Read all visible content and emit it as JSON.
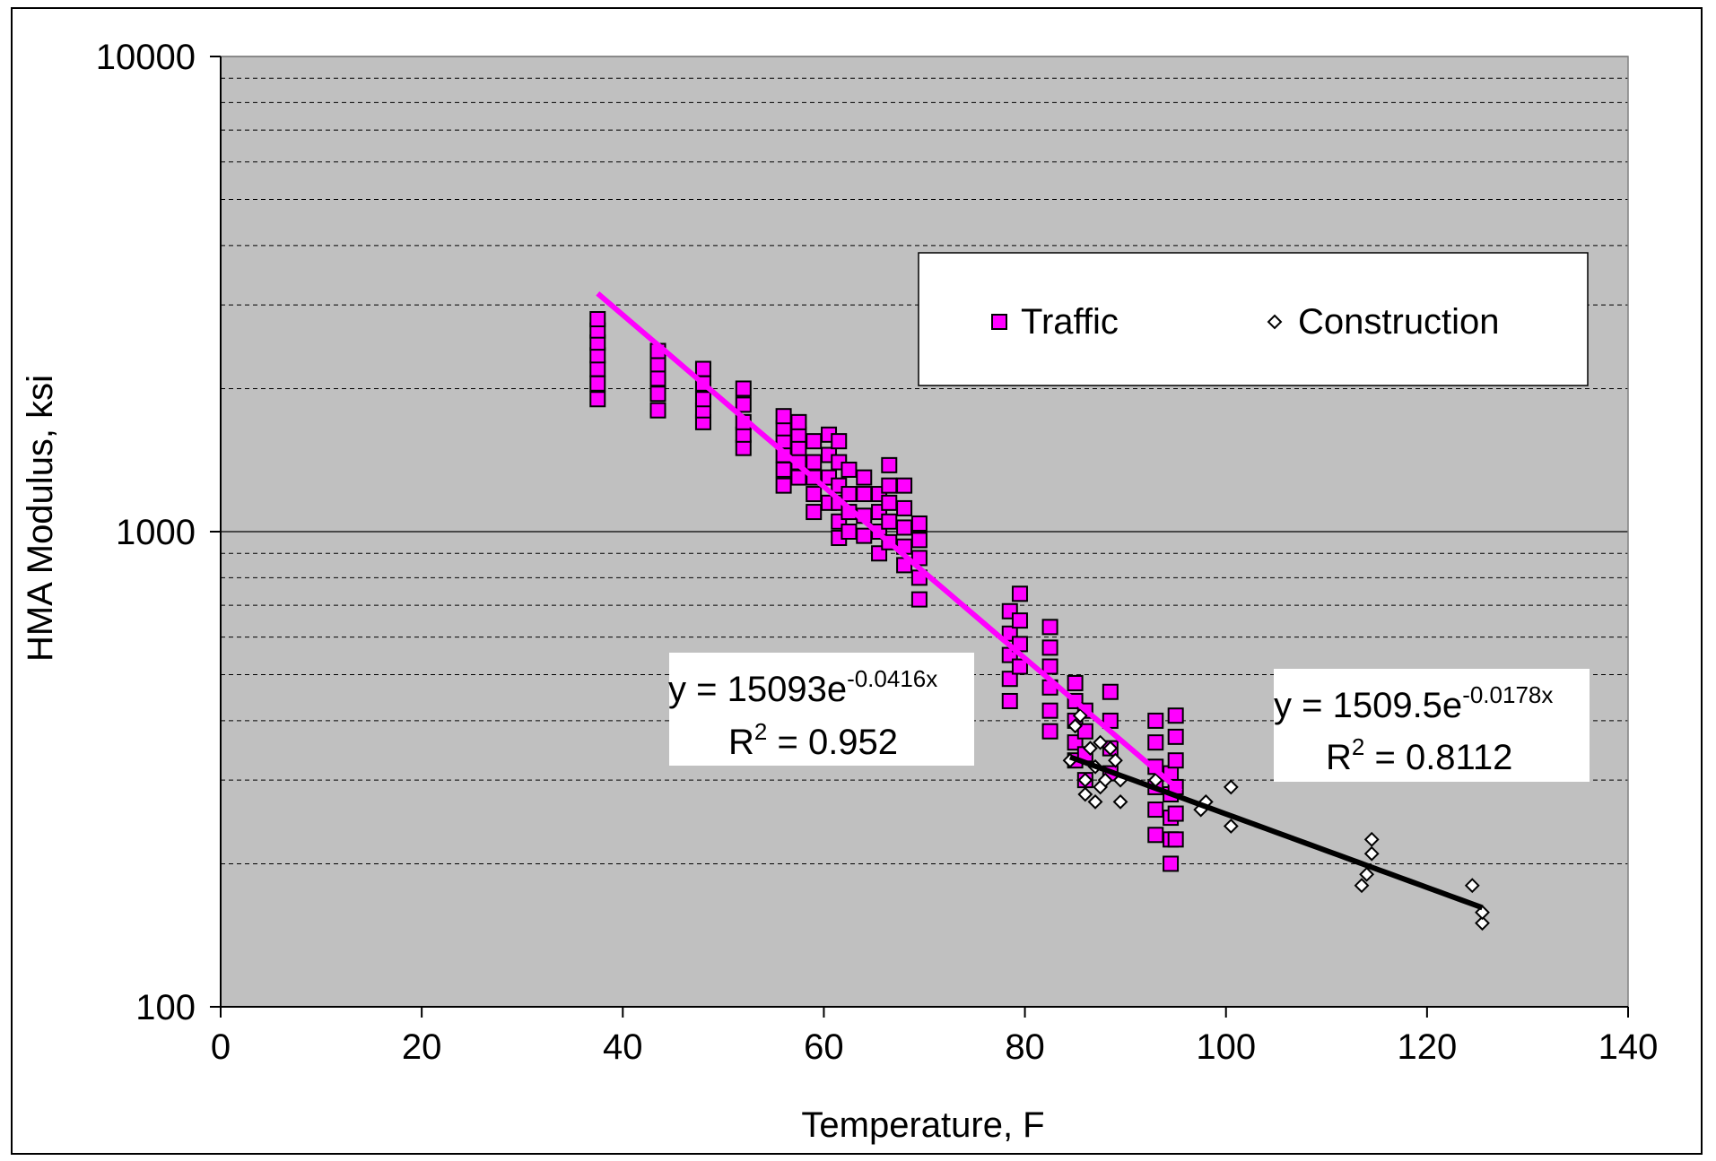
{
  "chart_data": {
    "type": "scatter",
    "xlabel": "Temperature, F",
    "ylabel": "HMA Modulus, ksi",
    "xlim": [
      0,
      140
    ],
    "ylim": [
      100,
      10000
    ],
    "y_scale": "log",
    "x_ticks": [
      "0",
      "20",
      "40",
      "60",
      "80",
      "100",
      "120",
      "140"
    ],
    "y_ticks": [
      "100",
      "1000",
      "10000"
    ],
    "grid": "horizontal dashed minor, solid major",
    "plot_background": "#c0c0c0",
    "legend_position": "top-right",
    "series": [
      {
        "name": "Traffic",
        "marker": "square",
        "color": "#ff00ff",
        "points": [
          [
            37.5,
            1900
          ],
          [
            37.5,
            2050
          ],
          [
            37.5,
            2200
          ],
          [
            37.5,
            2350
          ],
          [
            37.5,
            2500
          ],
          [
            37.5,
            2650
          ],
          [
            37.5,
            2800
          ],
          [
            43.5,
            1800
          ],
          [
            43.5,
            1950
          ],
          [
            43.5,
            2100
          ],
          [
            43.5,
            2250
          ],
          [
            43.5,
            2400
          ],
          [
            48,
            1700
          ],
          [
            48,
            1800
          ],
          [
            48,
            1900
          ],
          [
            48,
            2050
          ],
          [
            48,
            2200
          ],
          [
            52,
            1500
          ],
          [
            52,
            1600
          ],
          [
            52,
            1700
          ],
          [
            52,
            1850
          ],
          [
            52,
            2000
          ],
          [
            56,
            1250
          ],
          [
            56,
            1350
          ],
          [
            56,
            1450
          ],
          [
            56,
            1550
          ],
          [
            56,
            1650
          ],
          [
            56,
            1750
          ],
          [
            57.5,
            1300
          ],
          [
            57.5,
            1400
          ],
          [
            57.5,
            1500
          ],
          [
            57.5,
            1600
          ],
          [
            57.5,
            1700
          ],
          [
            59,
            1100
          ],
          [
            59,
            1200
          ],
          [
            59,
            1300
          ],
          [
            59,
            1400
          ],
          [
            59,
            1550
          ],
          [
            60.5,
            1150
          ],
          [
            60.5,
            1300
          ],
          [
            60.5,
            1450
          ],
          [
            60.5,
            1600
          ],
          [
            61.5,
            970
          ],
          [
            61.5,
            1050
          ],
          [
            61.5,
            1150
          ],
          [
            61.5,
            1250
          ],
          [
            61.5,
            1400
          ],
          [
            61.5,
            1550
          ],
          [
            62.5,
            1000
          ],
          [
            62.5,
            1100
          ],
          [
            62.5,
            1200
          ],
          [
            62.5,
            1350
          ],
          [
            64,
            980
          ],
          [
            64,
            1080
          ],
          [
            64,
            1200
          ],
          [
            64,
            1300
          ],
          [
            65.5,
            900
          ],
          [
            65.5,
            1000
          ],
          [
            65.5,
            1100
          ],
          [
            65.5,
            1200
          ],
          [
            66.5,
            950
          ],
          [
            66.5,
            1050
          ],
          [
            66.5,
            1150
          ],
          [
            66.5,
            1250
          ],
          [
            66.5,
            1380
          ],
          [
            68,
            850
          ],
          [
            68,
            930
          ],
          [
            68,
            1020
          ],
          [
            68,
            1120
          ],
          [
            68,
            1250
          ],
          [
            69.5,
            720
          ],
          [
            69.5,
            800
          ],
          [
            69.5,
            880
          ],
          [
            69.5,
            960
          ],
          [
            69.5,
            1040
          ],
          [
            78.5,
            440
          ],
          [
            78.5,
            490
          ],
          [
            78.5,
            550
          ],
          [
            78.5,
            610
          ],
          [
            78.5,
            680
          ],
          [
            79.5,
            520
          ],
          [
            79.5,
            580
          ],
          [
            79.5,
            650
          ],
          [
            79.5,
            740
          ],
          [
            82.5,
            380
          ],
          [
            82.5,
            420
          ],
          [
            82.5,
            470
          ],
          [
            82.5,
            520
          ],
          [
            82.5,
            570
          ],
          [
            82.5,
            630
          ],
          [
            85,
            330
          ],
          [
            85,
            360
          ],
          [
            85,
            400
          ],
          [
            85,
            440
          ],
          [
            85,
            480
          ],
          [
            86,
            300
          ],
          [
            86,
            340
          ],
          [
            86,
            380
          ],
          [
            86,
            420
          ],
          [
            88.5,
            310
          ],
          [
            88.5,
            350
          ],
          [
            88.5,
            400
          ],
          [
            88.5,
            460
          ],
          [
            93,
            230
          ],
          [
            93,
            260
          ],
          [
            93,
            290
          ],
          [
            93,
            320
          ],
          [
            93,
            360
          ],
          [
            93,
            400
          ],
          [
            94.5,
            200
          ],
          [
            94.5,
            225
          ],
          [
            94.5,
            250
          ],
          [
            94.5,
            280
          ],
          [
            94.5,
            310
          ],
          [
            95,
            225
          ],
          [
            95,
            255
          ],
          [
            95,
            290
          ],
          [
            95,
            330
          ],
          [
            95,
            370
          ],
          [
            95,
            410
          ]
        ],
        "trendline": {
          "a": 15093,
          "b": -0.0416,
          "x_range": [
            37.5,
            95.5
          ],
          "color": "#ff00ff"
        }
      },
      {
        "name": "Construction",
        "marker": "diamond",
        "color": "#ffffff",
        "points": [
          [
            84.5,
            330
          ],
          [
            85,
            390
          ],
          [
            85.5,
            410
          ],
          [
            86,
            280
          ],
          [
            86,
            300
          ],
          [
            86.5,
            350
          ],
          [
            87,
            270
          ],
          [
            87,
            320
          ],
          [
            87.5,
            360
          ],
          [
            87.5,
            290
          ],
          [
            88,
            300
          ],
          [
            88.5,
            350
          ],
          [
            89,
            330
          ],
          [
            89.5,
            270
          ],
          [
            89.5,
            300
          ],
          [
            93,
            300
          ],
          [
            97.5,
            260
          ],
          [
            98,
            270
          ],
          [
            100.5,
            240
          ],
          [
            100.5,
            290
          ],
          [
            113.5,
            180
          ],
          [
            114,
            190
          ],
          [
            114.5,
            210
          ],
          [
            114.5,
            225
          ],
          [
            124.5,
            180
          ],
          [
            125.5,
            150
          ],
          [
            125.5,
            158
          ]
        ],
        "trendline": {
          "a": 1509.5,
          "b": -0.0178,
          "x_range": [
            84.5,
            125.5
          ],
          "color": "#000000"
        }
      }
    ],
    "annotations": [
      {
        "eq_base": "y = 15093e",
        "eq_exp": "-0.0416x",
        "r2_label": "R",
        "r2_sup": "2",
        "r2_value": " = 0.952"
      },
      {
        "eq_base": "y = 1509.5e",
        "eq_exp": "-0.0178x",
        "r2_label": "R",
        "r2_sup": "2",
        "r2_value": " = 0.8112"
      }
    ]
  }
}
